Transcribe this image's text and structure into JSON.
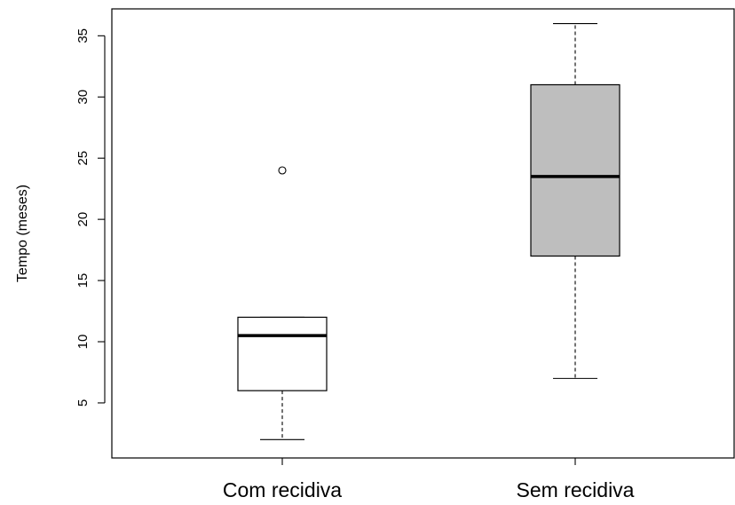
{
  "chart_data": {
    "type": "boxplot",
    "title": "",
    "xlabel": "",
    "ylabel": "Tempo (meses)",
    "ylim": [
      0.5,
      37.2
    ],
    "y_ticks": [
      5,
      10,
      15,
      20,
      25,
      30,
      35
    ],
    "y_tick_labels": [
      "5",
      "10",
      "15",
      "20",
      "25",
      "30",
      "35"
    ],
    "categories": [
      "Com recidiva",
      "Sem recidiva"
    ],
    "boxes": [
      {
        "label": "Com recidiva",
        "whisker_low": 2,
        "q1": 6,
        "median": 10.5,
        "q3": 12,
        "whisker_high": 12,
        "outliers": [
          24
        ],
        "fill": "#ffffff"
      },
      {
        "label": "Sem recidiva",
        "whisker_low": 7,
        "q1": 17,
        "median": 23.5,
        "q3": 31,
        "whisker_high": 36,
        "outliers": [],
        "fill": "#bebebe"
      }
    ],
    "grid": false,
    "legend": "none"
  }
}
